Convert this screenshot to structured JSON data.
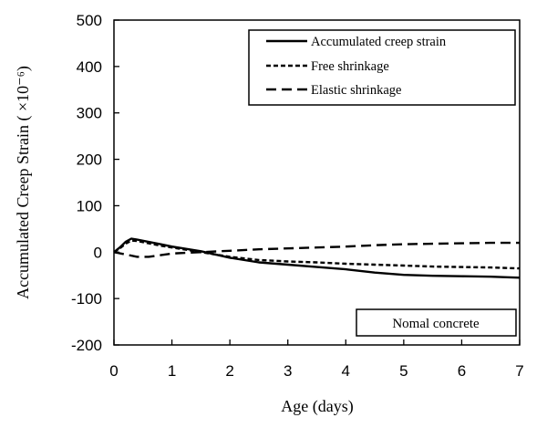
{
  "chart_data": {
    "type": "line",
    "title": "",
    "xlabel": "Age (days)",
    "ylabel": "Accumulated Creep Strain ( ×10⁻⁶)",
    "xlim": [
      0,
      7
    ],
    "ylim": [
      -200,
      500
    ],
    "xticks": [
      "0",
      "1",
      "2",
      "3",
      "4",
      "5",
      "6",
      "7"
    ],
    "yticks": [
      "500",
      "400",
      "300",
      "200",
      "100",
      "0",
      "-100",
      "-200"
    ],
    "grid": false,
    "legend_position": "top-right",
    "annotation": "Nomal  concrete",
    "series": [
      {
        "name": "Accumulated creep strain",
        "line_style": "solid",
        "color": "#000000",
        "x": [
          0,
          0.1,
          0.2,
          0.3,
          0.4,
          0.6,
          0.8,
          1.0,
          1.5,
          2.0,
          2.5,
          3.0,
          3.5,
          4.0,
          4.5,
          5.0,
          5.5,
          6.0,
          6.5,
          7.0
        ],
        "y": [
          0,
          10,
          22,
          29,
          27,
          22,
          17,
          12,
          2,
          -12,
          -22,
          -27,
          -32,
          -37,
          -44,
          -49,
          -51,
          -52,
          -53,
          -55
        ]
      },
      {
        "name": "Free shrinkage",
        "line_style": "short-dash",
        "color": "#000000",
        "x": [
          0,
          0.1,
          0.2,
          0.3,
          0.4,
          0.6,
          0.8,
          1.0,
          1.5,
          2.0,
          2.5,
          3.0,
          3.5,
          4.0,
          4.5,
          5.0,
          5.5,
          6.0,
          6.5,
          7.0
        ],
        "y": [
          0,
          8,
          18,
          25,
          24,
          19,
          14,
          10,
          0,
          -10,
          -17,
          -20,
          -22,
          -25,
          -27,
          -29,
          -31,
          -32,
          -33,
          -35
        ]
      },
      {
        "name": "Elastic shrinkage",
        "line_style": "long-dash",
        "color": "#000000",
        "x": [
          0,
          0.2,
          0.4,
          0.6,
          1.0,
          1.5,
          2.0,
          2.5,
          3.0,
          3.5,
          4.0,
          4.5,
          5.0,
          5.5,
          6.0,
          6.5,
          7.0
        ],
        "y": [
          0,
          -5,
          -10,
          -10,
          -3,
          0,
          3,
          6,
          8,
          10,
          12,
          15,
          17,
          18,
          19,
          20,
          20
        ]
      }
    ]
  }
}
